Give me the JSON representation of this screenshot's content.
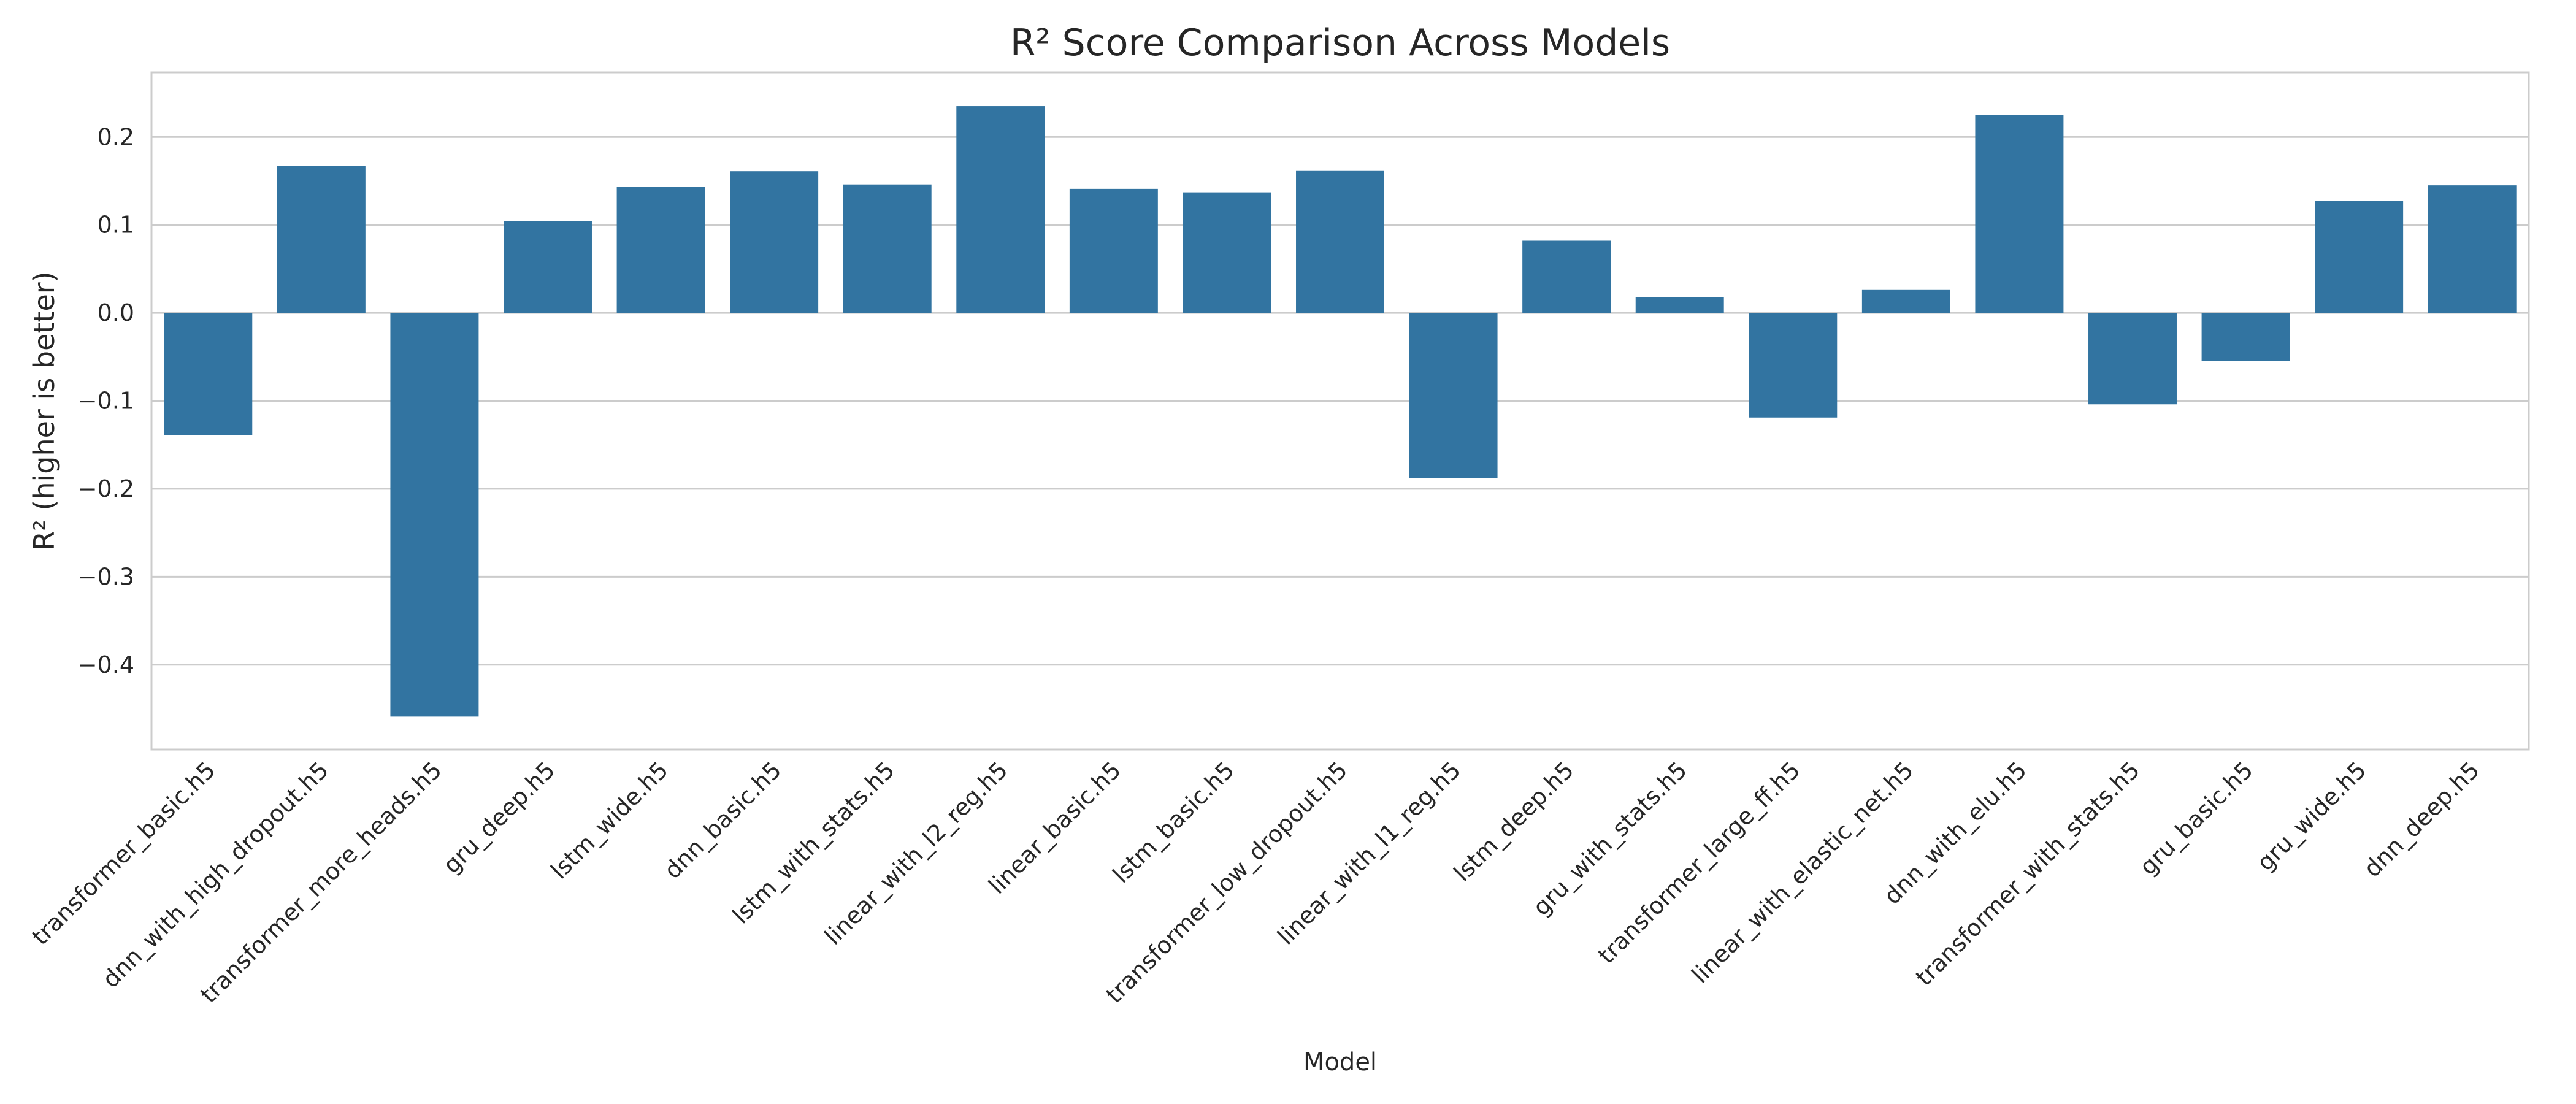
{
  "chart_data": {
    "type": "bar",
    "title": "R² Score Comparison Across Models",
    "xlabel": "Model",
    "ylabel": "R² (higher is better)",
    "ylim": [
      -0.495,
      0.272
    ],
    "yticks": [
      -0.4,
      -0.3,
      -0.2,
      -0.1,
      0.0,
      0.1,
      0.2
    ],
    "ytick_labels": [
      "−0.4",
      "−0.3",
      "−0.2",
      "−0.1",
      "0.0",
      "0.1",
      "0.2"
    ],
    "grid": true,
    "bar_color": "#3274a1",
    "categories": [
      "transformer_basic.h5",
      "dnn_with_high_dropout.h5",
      "transformer_more_heads.h5",
      "gru_deep.h5",
      "lstm_wide.h5",
      "dnn_basic.h5",
      "lstm_with_stats.h5",
      "linear_with_l2_reg.h5",
      "linear_basic.h5",
      "lstm_basic.h5",
      "transformer_low_dropout.h5",
      "linear_with_l1_reg.h5",
      "lstm_deep.h5",
      "gru_with_stats.h5",
      "transformer_large_ff.h5",
      "linear_with_elastic_net.h5",
      "dnn_with_elu.h5",
      "transformer_with_stats.h5",
      "gru_basic.h5",
      "gru_wide.h5",
      "dnn_deep.h5"
    ],
    "values": [
      -0.139,
      0.167,
      -0.459,
      0.104,
      0.143,
      0.161,
      0.146,
      0.235,
      0.141,
      0.137,
      0.162,
      -0.188,
      0.082,
      0.018,
      -0.119,
      0.026,
      0.225,
      -0.104,
      -0.055,
      0.127,
      0.145
    ]
  }
}
